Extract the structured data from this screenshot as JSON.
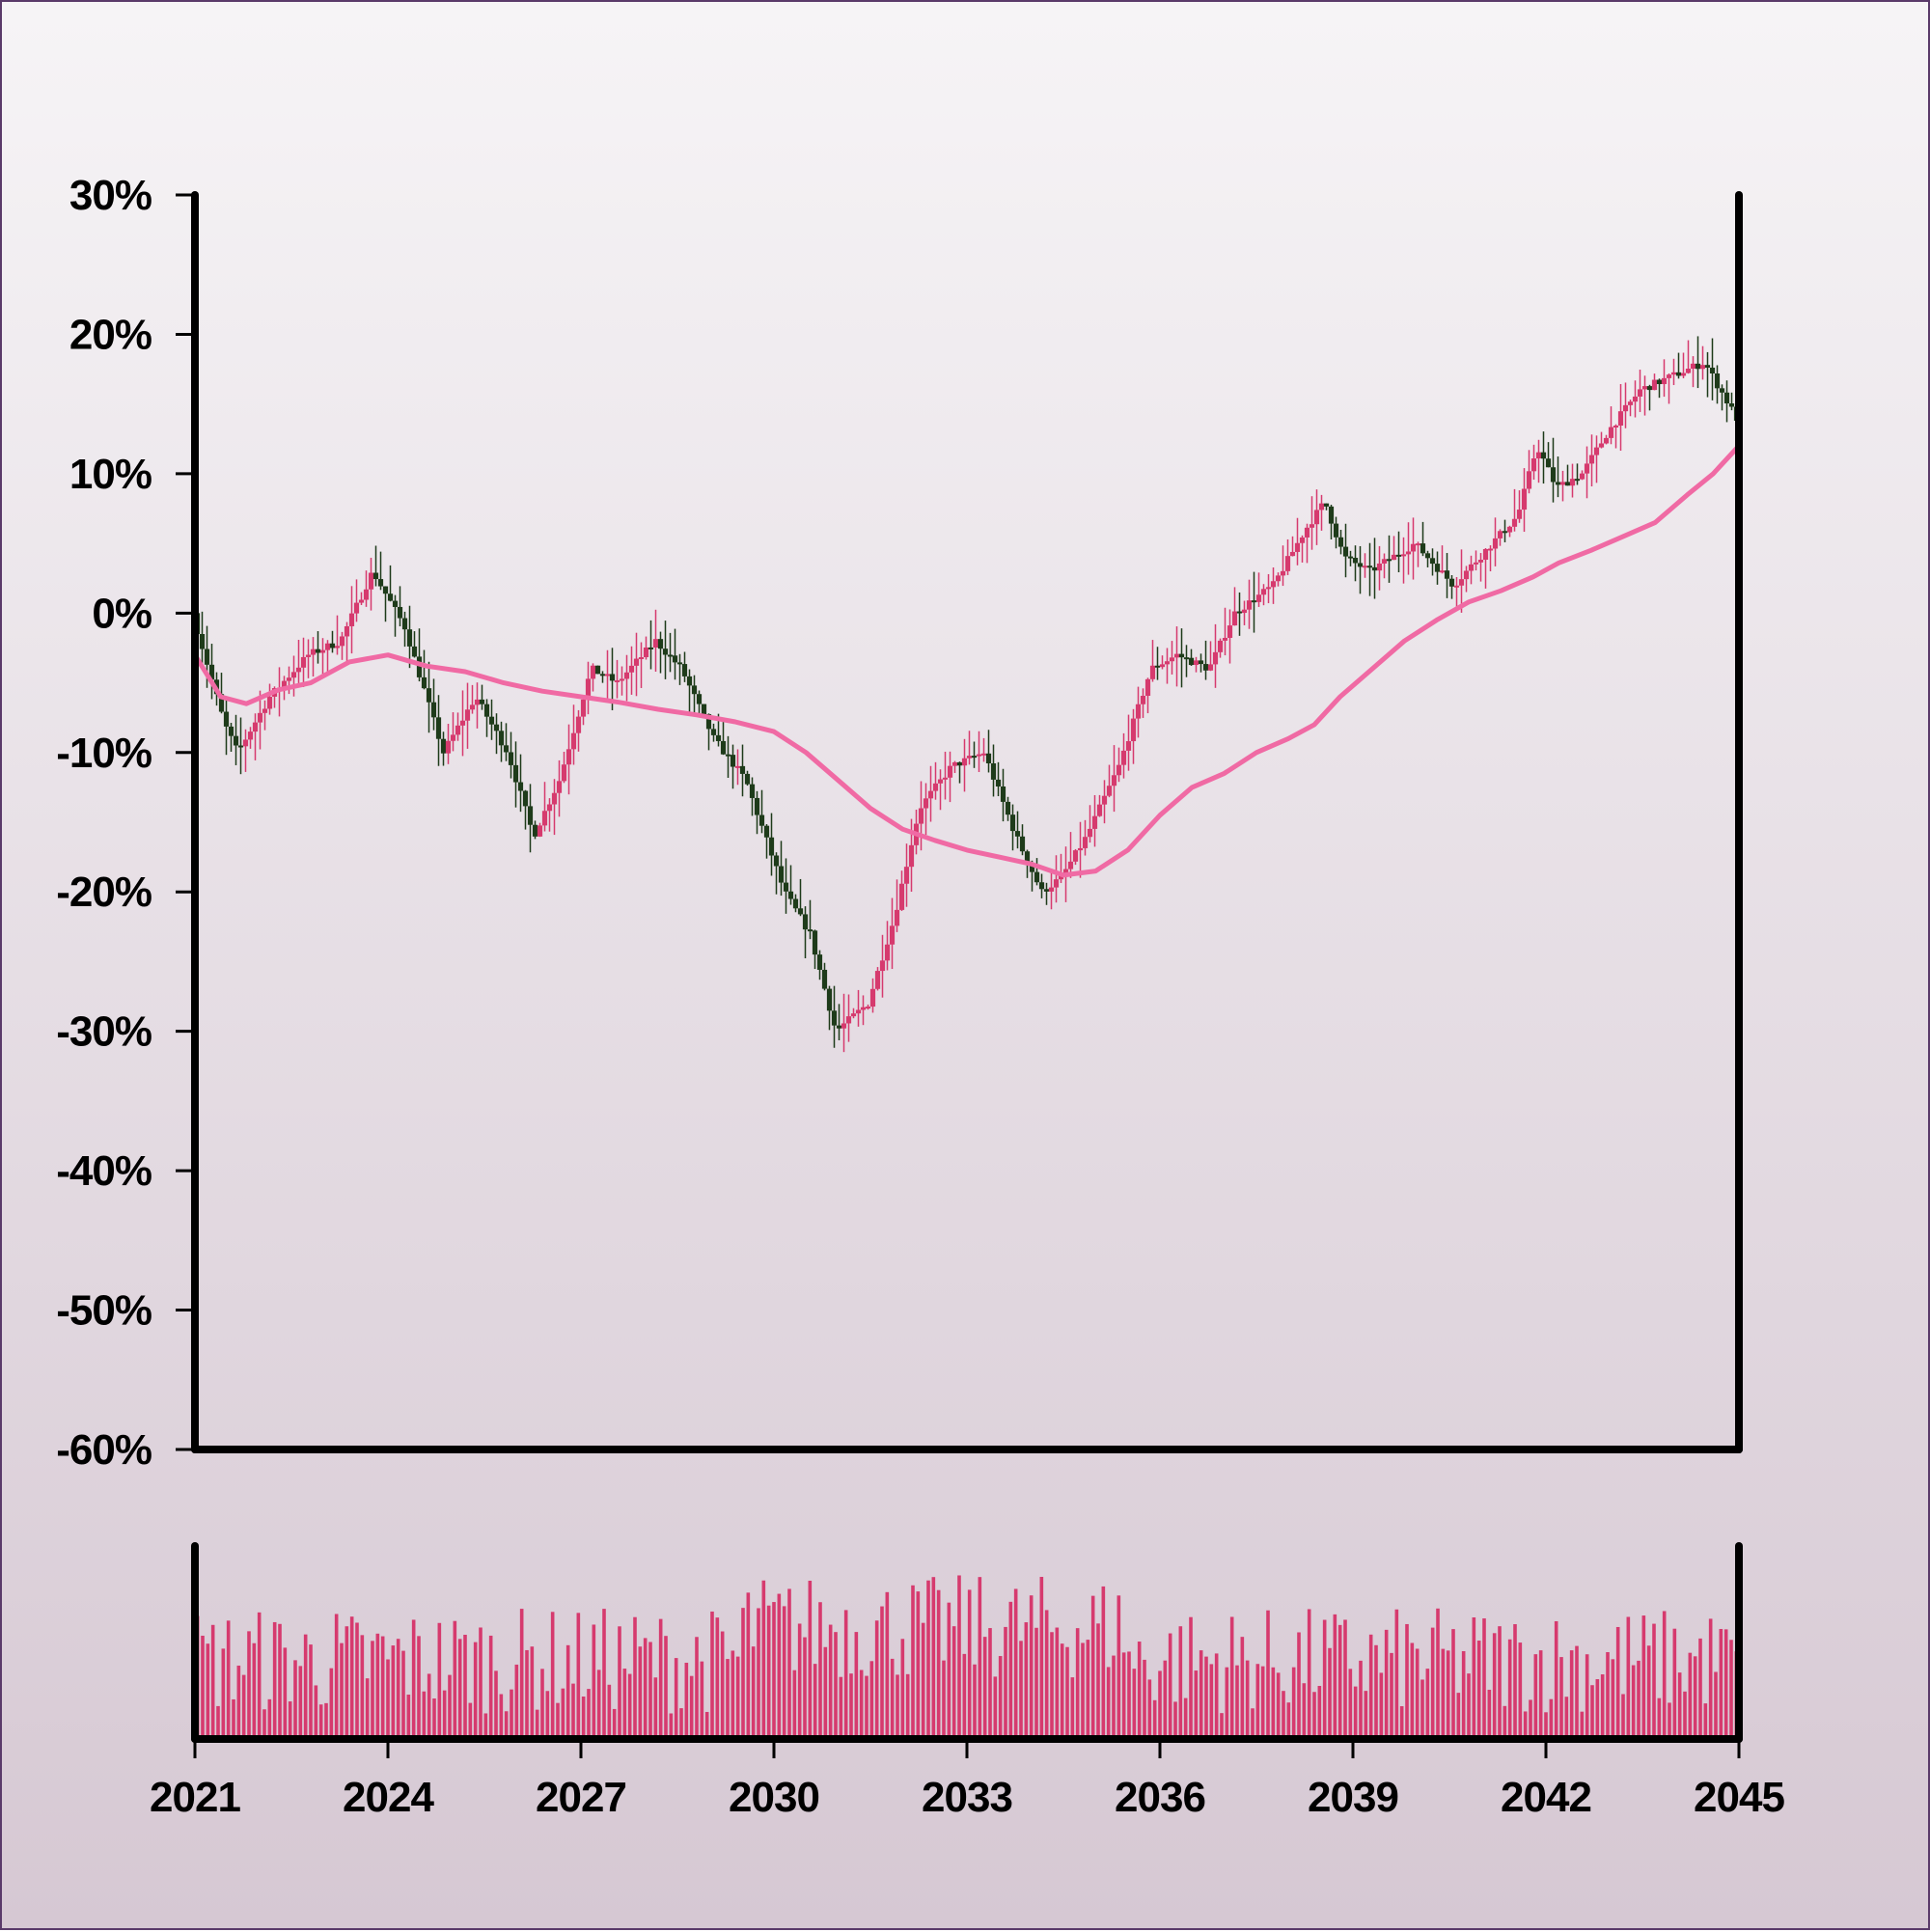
{
  "chart_data": {
    "type": "candlestick",
    "title": "",
    "xlabel": "",
    "ylabel": "",
    "x_range": [
      2021,
      2045
    ],
    "x_ticks": [
      "2021",
      "2024",
      "2027",
      "2030",
      "2033",
      "2036",
      "2039",
      "2042",
      "2045"
    ],
    "y_range": [
      -60,
      30
    ],
    "y_ticks": [
      "30%",
      "20%",
      "10%",
      "0%",
      "-10%",
      "-20%",
      "-30%",
      "-40%",
      "-50%",
      "-60%"
    ],
    "grid": false,
    "legend": "none",
    "colors": {
      "up": "#d63a6e",
      "down": "#1e3b1a",
      "moving_average": "#f06aa4",
      "volume": "#d63a6e",
      "axis": "#000000"
    },
    "price_anchors": [
      [
        2021.0,
        0
      ],
      [
        2021.5,
        -8
      ],
      [
        2021.7,
        -10
      ],
      [
        2022.2,
        -6
      ],
      [
        2022.8,
        -3
      ],
      [
        2023.3,
        -2
      ],
      [
        2023.8,
        3
      ],
      [
        2024.3,
        -1
      ],
      [
        2024.7,
        -7
      ],
      [
        2024.9,
        -10
      ],
      [
        2025.4,
        -6
      ],
      [
        2025.9,
        -10
      ],
      [
        2026.3,
        -16
      ],
      [
        2026.7,
        -12
      ],
      [
        2027.2,
        -4
      ],
      [
        2027.6,
        -5
      ],
      [
        2028.2,
        -2
      ],
      [
        2028.6,
        -4
      ],
      [
        2029.1,
        -9
      ],
      [
        2029.6,
        -12
      ],
      [
        2030.2,
        -20
      ],
      [
        2030.6,
        -23
      ],
      [
        2031.0,
        -30
      ],
      [
        2031.5,
        -28
      ],
      [
        2031.9,
        -22
      ],
      [
        2032.3,
        -14
      ],
      [
        2032.8,
        -11
      ],
      [
        2033.3,
        -10
      ],
      [
        2033.8,
        -16
      ],
      [
        2034.2,
        -20
      ],
      [
        2034.5,
        -19
      ],
      [
        2034.9,
        -16
      ],
      [
        2035.4,
        -11
      ],
      [
        2035.9,
        -4
      ],
      [
        2036.3,
        -3
      ],
      [
        2036.8,
        -4
      ],
      [
        2037.2,
        0
      ],
      [
        2037.8,
        2
      ],
      [
        2038.3,
        6
      ],
      [
        2038.6,
        8
      ],
      [
        2038.9,
        4
      ],
      [
        2039.3,
        3
      ],
      [
        2040.0,
        5
      ],
      [
        2040.6,
        2
      ],
      [
        2041.0,
        4
      ],
      [
        2041.6,
        7
      ],
      [
        2041.9,
        12
      ],
      [
        2042.2,
        9
      ],
      [
        2042.6,
        10
      ],
      [
        2043.0,
        13
      ],
      [
        2043.5,
        16
      ],
      [
        2044.0,
        17
      ],
      [
        2044.5,
        18
      ],
      [
        2045.0,
        14
      ]
    ],
    "series": [
      {
        "values": [
          [
            2021.0,
            -3
          ],
          [
            2021.4,
            -6
          ],
          [
            2021.8,
            -6.5
          ],
          [
            2022.3,
            -5.5
          ],
          [
            2022.8,
            -5
          ],
          [
            2023.4,
            -3.5
          ],
          [
            2024.0,
            -3
          ],
          [
            2024.6,
            -3.8
          ],
          [
            2025.2,
            -4.2
          ],
          [
            2025.8,
            -5
          ],
          [
            2026.4,
            -5.6
          ],
          [
            2027.0,
            -6
          ],
          [
            2027.6,
            -6.4
          ],
          [
            2028.2,
            -6.9
          ],
          [
            2028.8,
            -7.3
          ],
          [
            2029.4,
            -7.8
          ],
          [
            2030.0,
            -8.5
          ],
          [
            2030.5,
            -10
          ],
          [
            2031.0,
            -12
          ],
          [
            2031.5,
            -14
          ],
          [
            2032.0,
            -15.5
          ],
          [
            2032.5,
            -16.3
          ],
          [
            2033.0,
            -17
          ],
          [
            2033.5,
            -17.5
          ],
          [
            2034.0,
            -18
          ],
          [
            2034.5,
            -18.8
          ],
          [
            2035.0,
            -18.5
          ],
          [
            2035.5,
            -17
          ],
          [
            2036.0,
            -14.5
          ],
          [
            2036.5,
            -12.5
          ],
          [
            2037.0,
            -11.5
          ],
          [
            2037.5,
            -10
          ],
          [
            2038.0,
            -9
          ],
          [
            2038.4,
            -8
          ],
          [
            2038.8,
            -6
          ],
          [
            2039.3,
            -4
          ],
          [
            2039.8,
            -2
          ],
          [
            2040.3,
            -0.5
          ],
          [
            2040.8,
            0.8
          ],
          [
            2041.3,
            1.6
          ],
          [
            2041.8,
            2.6
          ],
          [
            2042.2,
            3.6
          ],
          [
            2042.7,
            4.5
          ],
          [
            2043.2,
            5.5
          ],
          [
            2043.7,
            6.5
          ],
          [
            2044.2,
            8.5
          ],
          [
            2044.6,
            10
          ],
          [
            2045.0,
            12
          ]
        ]
      }
    ],
    "volume_range": [
      0,
      100
    ]
  }
}
